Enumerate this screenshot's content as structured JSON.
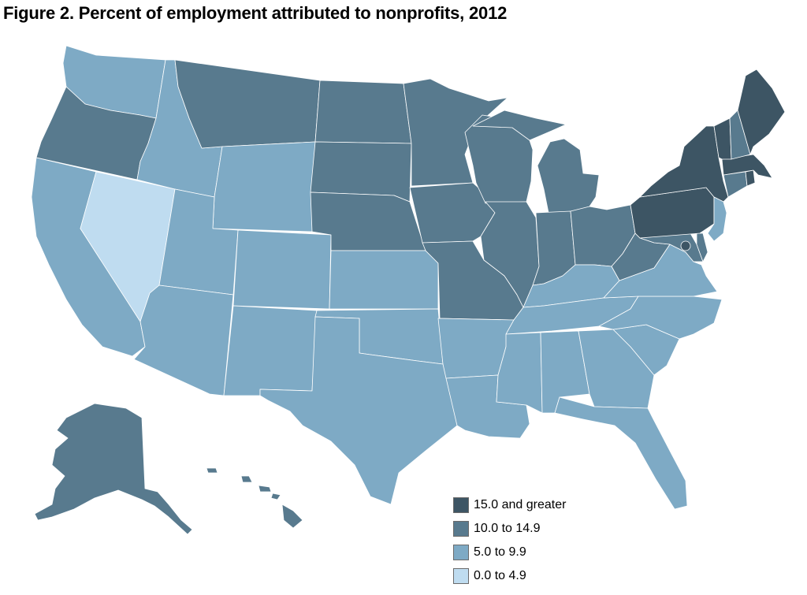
{
  "title": "Figure 2. Percent of employment attributed to nonprofits, 2012",
  "colors": {
    "c15": "#3d5564",
    "c10": "#587a8e",
    "c5": "#7eaac5",
    "c0": "#bfdcf0"
  },
  "legend": [
    {
      "label": "15.0 and greater",
      "class": "c15"
    },
    {
      "label": "10.0 to 14.9",
      "class": "c10"
    },
    {
      "label": "5.0 to 9.9",
      "class": "c5"
    },
    {
      "label": "0.0 to 4.9",
      "class": "c0"
    }
  ],
  "states": {
    "WA": "c5",
    "OR": "c10",
    "CA": "c5",
    "NV": "c0",
    "ID": "c5",
    "MT": "c10",
    "WY": "c5",
    "UT": "c5",
    "AZ": "c5",
    "CO": "c5",
    "NM": "c5",
    "ND": "c10",
    "SD": "c10",
    "NE": "c10",
    "KS": "c5",
    "OK": "c5",
    "TX": "c5",
    "MN": "c10",
    "IA": "c10",
    "MO": "c10",
    "AR": "c5",
    "LA": "c5",
    "WI": "c10",
    "IL": "c10",
    "MI": "c10",
    "IN": "c10",
    "OH": "c10",
    "KY": "c5",
    "TN": "c5",
    "MS": "c5",
    "AL": "c5",
    "GA": "c5",
    "FL": "c5",
    "SC": "c5",
    "NC": "c5",
    "VA": "c5",
    "WV": "c10",
    "MD": "c10",
    "DE": "c10",
    "DC": "c15",
    "PA": "c15",
    "NY": "c15",
    "NJ": "c5",
    "CT": "c10",
    "RI": "c15",
    "MA": "c15",
    "VT": "c15",
    "NH": "c10",
    "ME": "c15",
    "AK": "c10",
    "HI": "c10"
  }
}
